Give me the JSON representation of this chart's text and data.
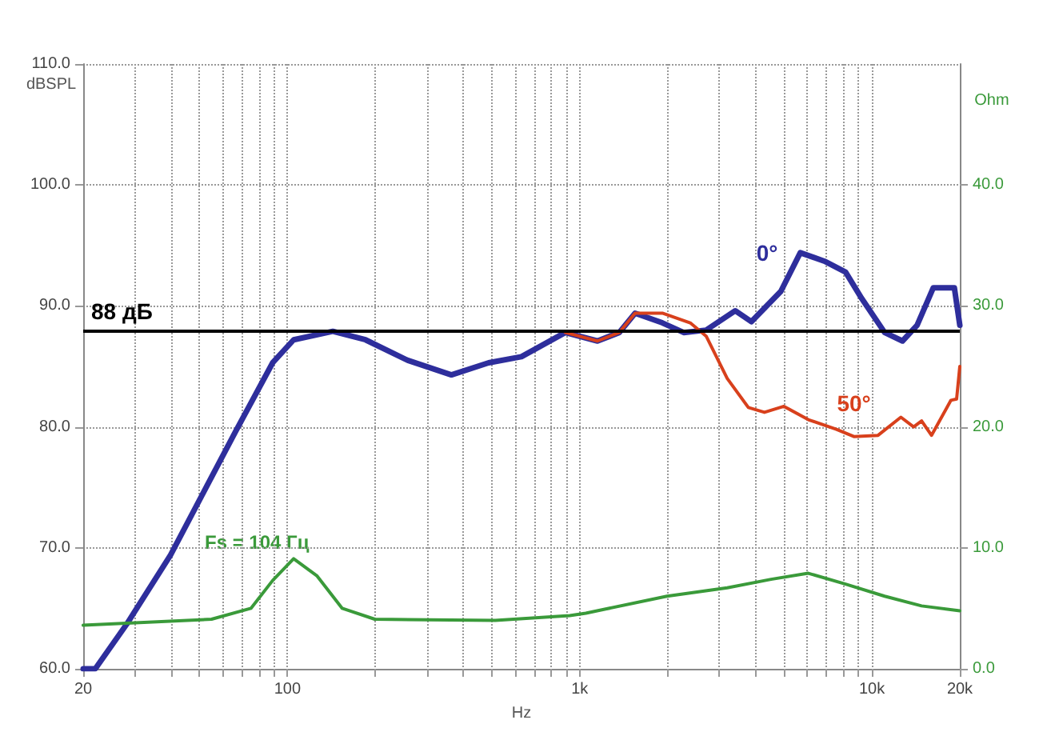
{
  "chart_data": {
    "type": "line",
    "xlabel": "Hz",
    "ylabel": "dBSPL",
    "y2label": "Ohm",
    "log": "x",
    "xlim": [
      20,
      20000
    ],
    "xticks": [
      20,
      {
        "value": 30,
        "label": null
      },
      {
        "value": 40,
        "label": null
      },
      {
        "value": 50,
        "label": null
      },
      {
        "value": 60,
        "label": null
      },
      {
        "value": 70,
        "label": null
      },
      {
        "value": 80,
        "label": null
      },
      {
        "value": 90,
        "label": null
      },
      100,
      {
        "value": 200,
        "label": null
      },
      {
        "value": 300,
        "label": null
      },
      {
        "value": 400,
        "label": null
      },
      {
        "value": 500,
        "label": null
      },
      {
        "value": 600,
        "label": null
      },
      {
        "value": 700,
        "label": null
      },
      {
        "value": 800,
        "label": null
      },
      {
        "value": 900,
        "label": null
      },
      {
        "value": 1000,
        "label": "1k"
      },
      {
        "value": 2000,
        "label": null
      },
      {
        "value": 3000,
        "label": null
      },
      {
        "value": 4000,
        "label": null
      },
      {
        "value": 5000,
        "label": null
      },
      {
        "value": 6000,
        "label": null
      },
      {
        "value": 7000,
        "label": null
      },
      {
        "value": 8000,
        "label": null
      },
      {
        "value": 9000,
        "label": null
      },
      {
        "value": 10000,
        "label": "10k"
      },
      {
        "value": 20000,
        "label": "20k"
      }
    ],
    "ylim": [
      60,
      110
    ],
    "yticks": [
      {
        "value": 60,
        "label": "60.0"
      },
      {
        "value": 70,
        "label": "70.0"
      },
      {
        "value": 80,
        "label": "80.0"
      },
      {
        "value": 90,
        "label": "90.0"
      },
      {
        "value": 100,
        "label": "100.0"
      },
      {
        "value": 110,
        "label": "110.0"
      }
    ],
    "y2lim": [
      0,
      50
    ],
    "y2ticks": [
      {
        "value": 0,
        "label": "0.0"
      },
      {
        "value": 10,
        "label": "10.0"
      },
      {
        "value": 20,
        "label": "20.0"
      },
      {
        "value": 30,
        "label": "30.0"
      },
      {
        "value": 40,
        "label": "40.0"
      }
    ],
    "grid": true,
    "marker": "none",
    "line_style": "solid",
    "ref_lines": [
      {
        "axis": "y",
        "value": 88,
        "label": "88 дБ",
        "color": "#000000"
      }
    ],
    "annotations": [
      "Fs = 104 Гц"
    ],
    "series": [
      {
        "name": "0°",
        "color": "#2e2e9c",
        "x": [
          20,
          22,
          28.2,
          39.8,
          66.4,
          89,
          105,
          143,
          185,
          258,
          364,
          488,
          632,
          893,
          1151,
          1366,
          1548,
          1919,
          2270,
          2710,
          3408,
          3872,
          4880,
          5690,
          6880,
          8130,
          9240,
          11060,
          12730,
          14280,
          16230,
          19160,
          20000
        ],
        "values": [
          60,
          60,
          63.7,
          69.4,
          79.6,
          85.3,
          87.2,
          87.9,
          87.2,
          85.5,
          84.3,
          85.3,
          85.8,
          87.8,
          87.1,
          87.8,
          89.4,
          88.6,
          87.8,
          88.0,
          89.6,
          88.7,
          91.2,
          94.4,
          93.7,
          92.8,
          90.6,
          87.8,
          87.1,
          88.4,
          91.5,
          91.5,
          88.4
        ]
      },
      {
        "name": "50°",
        "color": "#d8401c",
        "x": [
          893,
          1151,
          1366,
          1548,
          1919,
          2390,
          2710,
          3200,
          3780,
          4290,
          5000,
          6060,
          7560,
          8680,
          10500,
          12570,
          13900,
          14800,
          16000,
          18650,
          19500,
          20000
        ],
        "values": [
          87.8,
          87.1,
          87.8,
          89.4,
          89.4,
          88.6,
          87.5,
          84.0,
          81.6,
          81.2,
          81.7,
          80.6,
          79.8,
          79.2,
          79.3,
          80.8,
          80.0,
          80.5,
          79.3,
          82.2,
          82.3,
          85.0
        ]
      },
      {
        "color": "#3a9a3a",
        "axis": "y2",
        "x": [
          20,
          55,
          75,
          89,
          105,
          126,
          154,
          199,
          514,
          925,
          1050,
          1990,
          3200,
          4520,
          6060,
          8130,
          11060,
          14800,
          20000
        ],
        "values": [
          3.6,
          4.1,
          5.0,
          7.3,
          9.1,
          7.7,
          5.0,
          4.1,
          4.0,
          4.4,
          4.6,
          6.0,
          6.7,
          7.4,
          7.9,
          7.0,
          6.0,
          5.2,
          4.8
        ]
      }
    ]
  }
}
